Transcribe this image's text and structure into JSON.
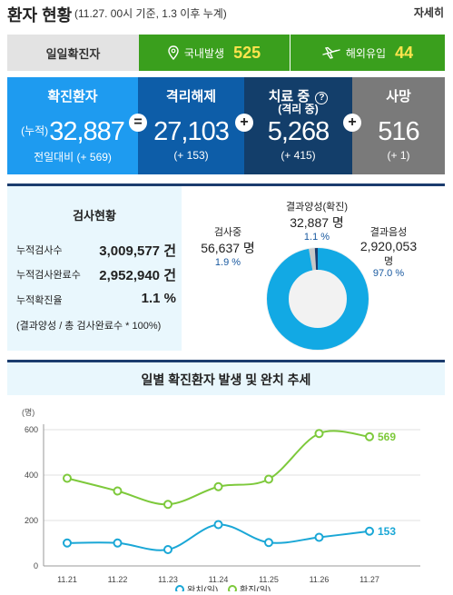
{
  "header": {
    "title": "환자 현황",
    "subtitle": "(11.27. 00시 기준, 1.3 이후 누계)",
    "more_label": "자세히"
  },
  "daily": {
    "label": "일일확진자",
    "domestic_label": "국내발생",
    "domestic_value": "525",
    "overseas_label": "해외유입",
    "overseas_value": "44"
  },
  "stats": {
    "confirmed": {
      "title": "확진환자",
      "prefix": "(누적)",
      "value": "32,887",
      "delta": "전일대비 (+ 569)"
    },
    "released": {
      "title": "격리해제",
      "value": "27,103",
      "delta": "(+ 153)"
    },
    "treatment": {
      "title": "치료 중",
      "subtitle": "(격리 중)",
      "value": "5,268",
      "delta": "(+ 415)"
    },
    "death": {
      "title": "사망",
      "value": "516",
      "delta": "(+ 1)"
    },
    "op_equal": "=",
    "op_plus": "+"
  },
  "test": {
    "title": "검사현황",
    "rows": [
      {
        "label": "누적검사수",
        "value": "3,009,577 건"
      },
      {
        "label": "누적검사완료수",
        "value": "2,952,940 건"
      },
      {
        "label": "누적확진율",
        "value": "1.1 %"
      }
    ],
    "note": "(결과양성 / 총 검사완료수 * 100%)",
    "donut": {
      "testing": {
        "label": "검사중",
        "value": "56,637 명",
        "pct": "1.9 %",
        "fraction": 0.019,
        "color": "#c8c8c8"
      },
      "positive": {
        "label": "결과양성(확진)",
        "value": "32,887 명",
        "pct": "1.1 %",
        "fraction": 0.011,
        "color": "#1b3c6e"
      },
      "negative": {
        "label": "결과음성",
        "value": "2,920,053",
        "unit": "명",
        "pct": "97.0 %",
        "fraction": 0.97,
        "color": "#12a9e4"
      }
    }
  },
  "chart_data": {
    "type": "line",
    "title": "일별 확진환자 발생 및 완치 추세",
    "ylabel": "(명)",
    "ylim": [
      0,
      600
    ],
    "yticks": [
      0,
      200,
      400,
      600
    ],
    "grid": true,
    "legend_position": "bottom",
    "categories": [
      "11.21",
      "11.22",
      "11.23",
      "11.24",
      "11.25",
      "11.26",
      "11.27"
    ],
    "series": [
      {
        "name": "완치(일)",
        "values": [
          101,
          101,
          72,
          182,
          103,
          126,
          153
        ],
        "color": "#1aa7d6",
        "end_label": "153"
      },
      {
        "name": "확진(일)",
        "values": [
          386,
          330,
          271,
          349,
          382,
          583,
          569
        ],
        "color": "#7dc93b",
        "end_label": "569"
      }
    ]
  }
}
